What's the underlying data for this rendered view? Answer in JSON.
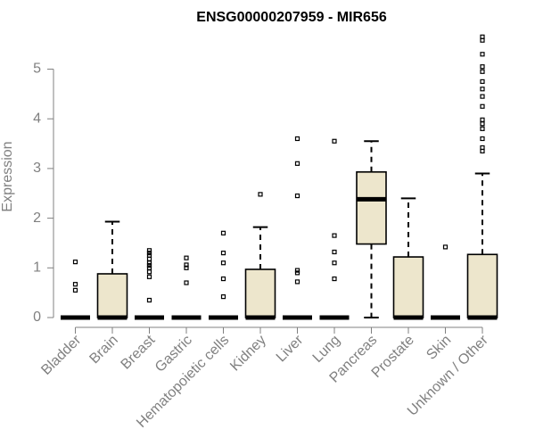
{
  "chart_data": {
    "type": "boxplot",
    "title": "ENSG00000207959 - MIR656",
    "xlabel": "",
    "ylabel": "Expression",
    "ylim": [
      0,
      5.7
    ],
    "yticks": [
      0,
      1,
      2,
      3,
      4,
      5
    ],
    "grid": false,
    "legend": "none",
    "colors": {
      "box_fill": "#ede6cc",
      "outline": "#000000",
      "axis": "#808080"
    },
    "categories": [
      "Bladder",
      "Brain",
      "Breast",
      "Gastric",
      "Hematopoietic cells",
      "Kidney",
      "Liver",
      "Lung",
      "Pancreas",
      "Prostate",
      "Skin",
      "Unknown / Other"
    ],
    "boxes": [
      {
        "category": "Bladder",
        "min": 0,
        "q1": 0,
        "median": 0,
        "q3": 0,
        "max": 0,
        "outliers": [
          0.55,
          0.67,
          1.12
        ]
      },
      {
        "category": "Brain",
        "min": 0,
        "q1": 0,
        "median": 0,
        "q3": 0.88,
        "max": 1.93,
        "outliers": []
      },
      {
        "category": "Breast",
        "min": 0,
        "q1": 0,
        "median": 0,
        "q3": 0,
        "max": 0,
        "outliers": [
          0.35,
          0.82,
          0.92,
          1.0,
          1.05,
          1.1,
          1.18,
          1.25,
          1.3,
          1.35
        ]
      },
      {
        "category": "Gastric",
        "min": 0,
        "q1": 0,
        "median": 0,
        "q3": 0,
        "max": 0,
        "outliers": [
          0.7,
          1.0,
          1.06,
          1.2
        ]
      },
      {
        "category": "Hematopoietic cells",
        "min": 0,
        "q1": 0,
        "median": 0,
        "q3": 0,
        "max": 0,
        "outliers": [
          0.42,
          0.78,
          1.1,
          1.3,
          1.7
        ]
      },
      {
        "category": "Kidney",
        "min": 0,
        "q1": 0,
        "median": 0,
        "q3": 0.97,
        "max": 1.82,
        "outliers": [
          2.48
        ]
      },
      {
        "category": "Liver",
        "min": 0,
        "q1": 0,
        "median": 0,
        "q3": 0,
        "max": 0,
        "outliers": [
          0.72,
          0.9,
          0.95,
          2.45,
          3.1,
          3.6
        ]
      },
      {
        "category": "Lung",
        "min": 0,
        "q1": 0,
        "median": 0,
        "q3": 0,
        "max": 0,
        "outliers": [
          0.78,
          1.1,
          1.32,
          1.65,
          3.55
        ]
      },
      {
        "category": "Pancreas",
        "min": 0,
        "q1": 1.48,
        "median": 2.38,
        "q3": 2.93,
        "max": 3.55,
        "outliers": []
      },
      {
        "category": "Prostate",
        "min": 0,
        "q1": 0,
        "median": 0,
        "q3": 1.22,
        "max": 2.4,
        "outliers": []
      },
      {
        "category": "Skin",
        "min": 0,
        "q1": 0,
        "median": 0,
        "q3": 0,
        "max": 0,
        "outliers": [
          1.42
        ]
      },
      {
        "category": "Unknown / Other",
        "min": 0,
        "q1": 0,
        "median": 0,
        "q3": 1.27,
        "max": 2.9,
        "outliers": [
          3.35,
          3.42,
          3.6,
          3.8,
          3.9,
          3.98,
          4.25,
          4.45,
          4.6,
          4.75,
          4.95,
          5.05,
          5.3,
          5.58,
          5.65
        ]
      }
    ]
  }
}
